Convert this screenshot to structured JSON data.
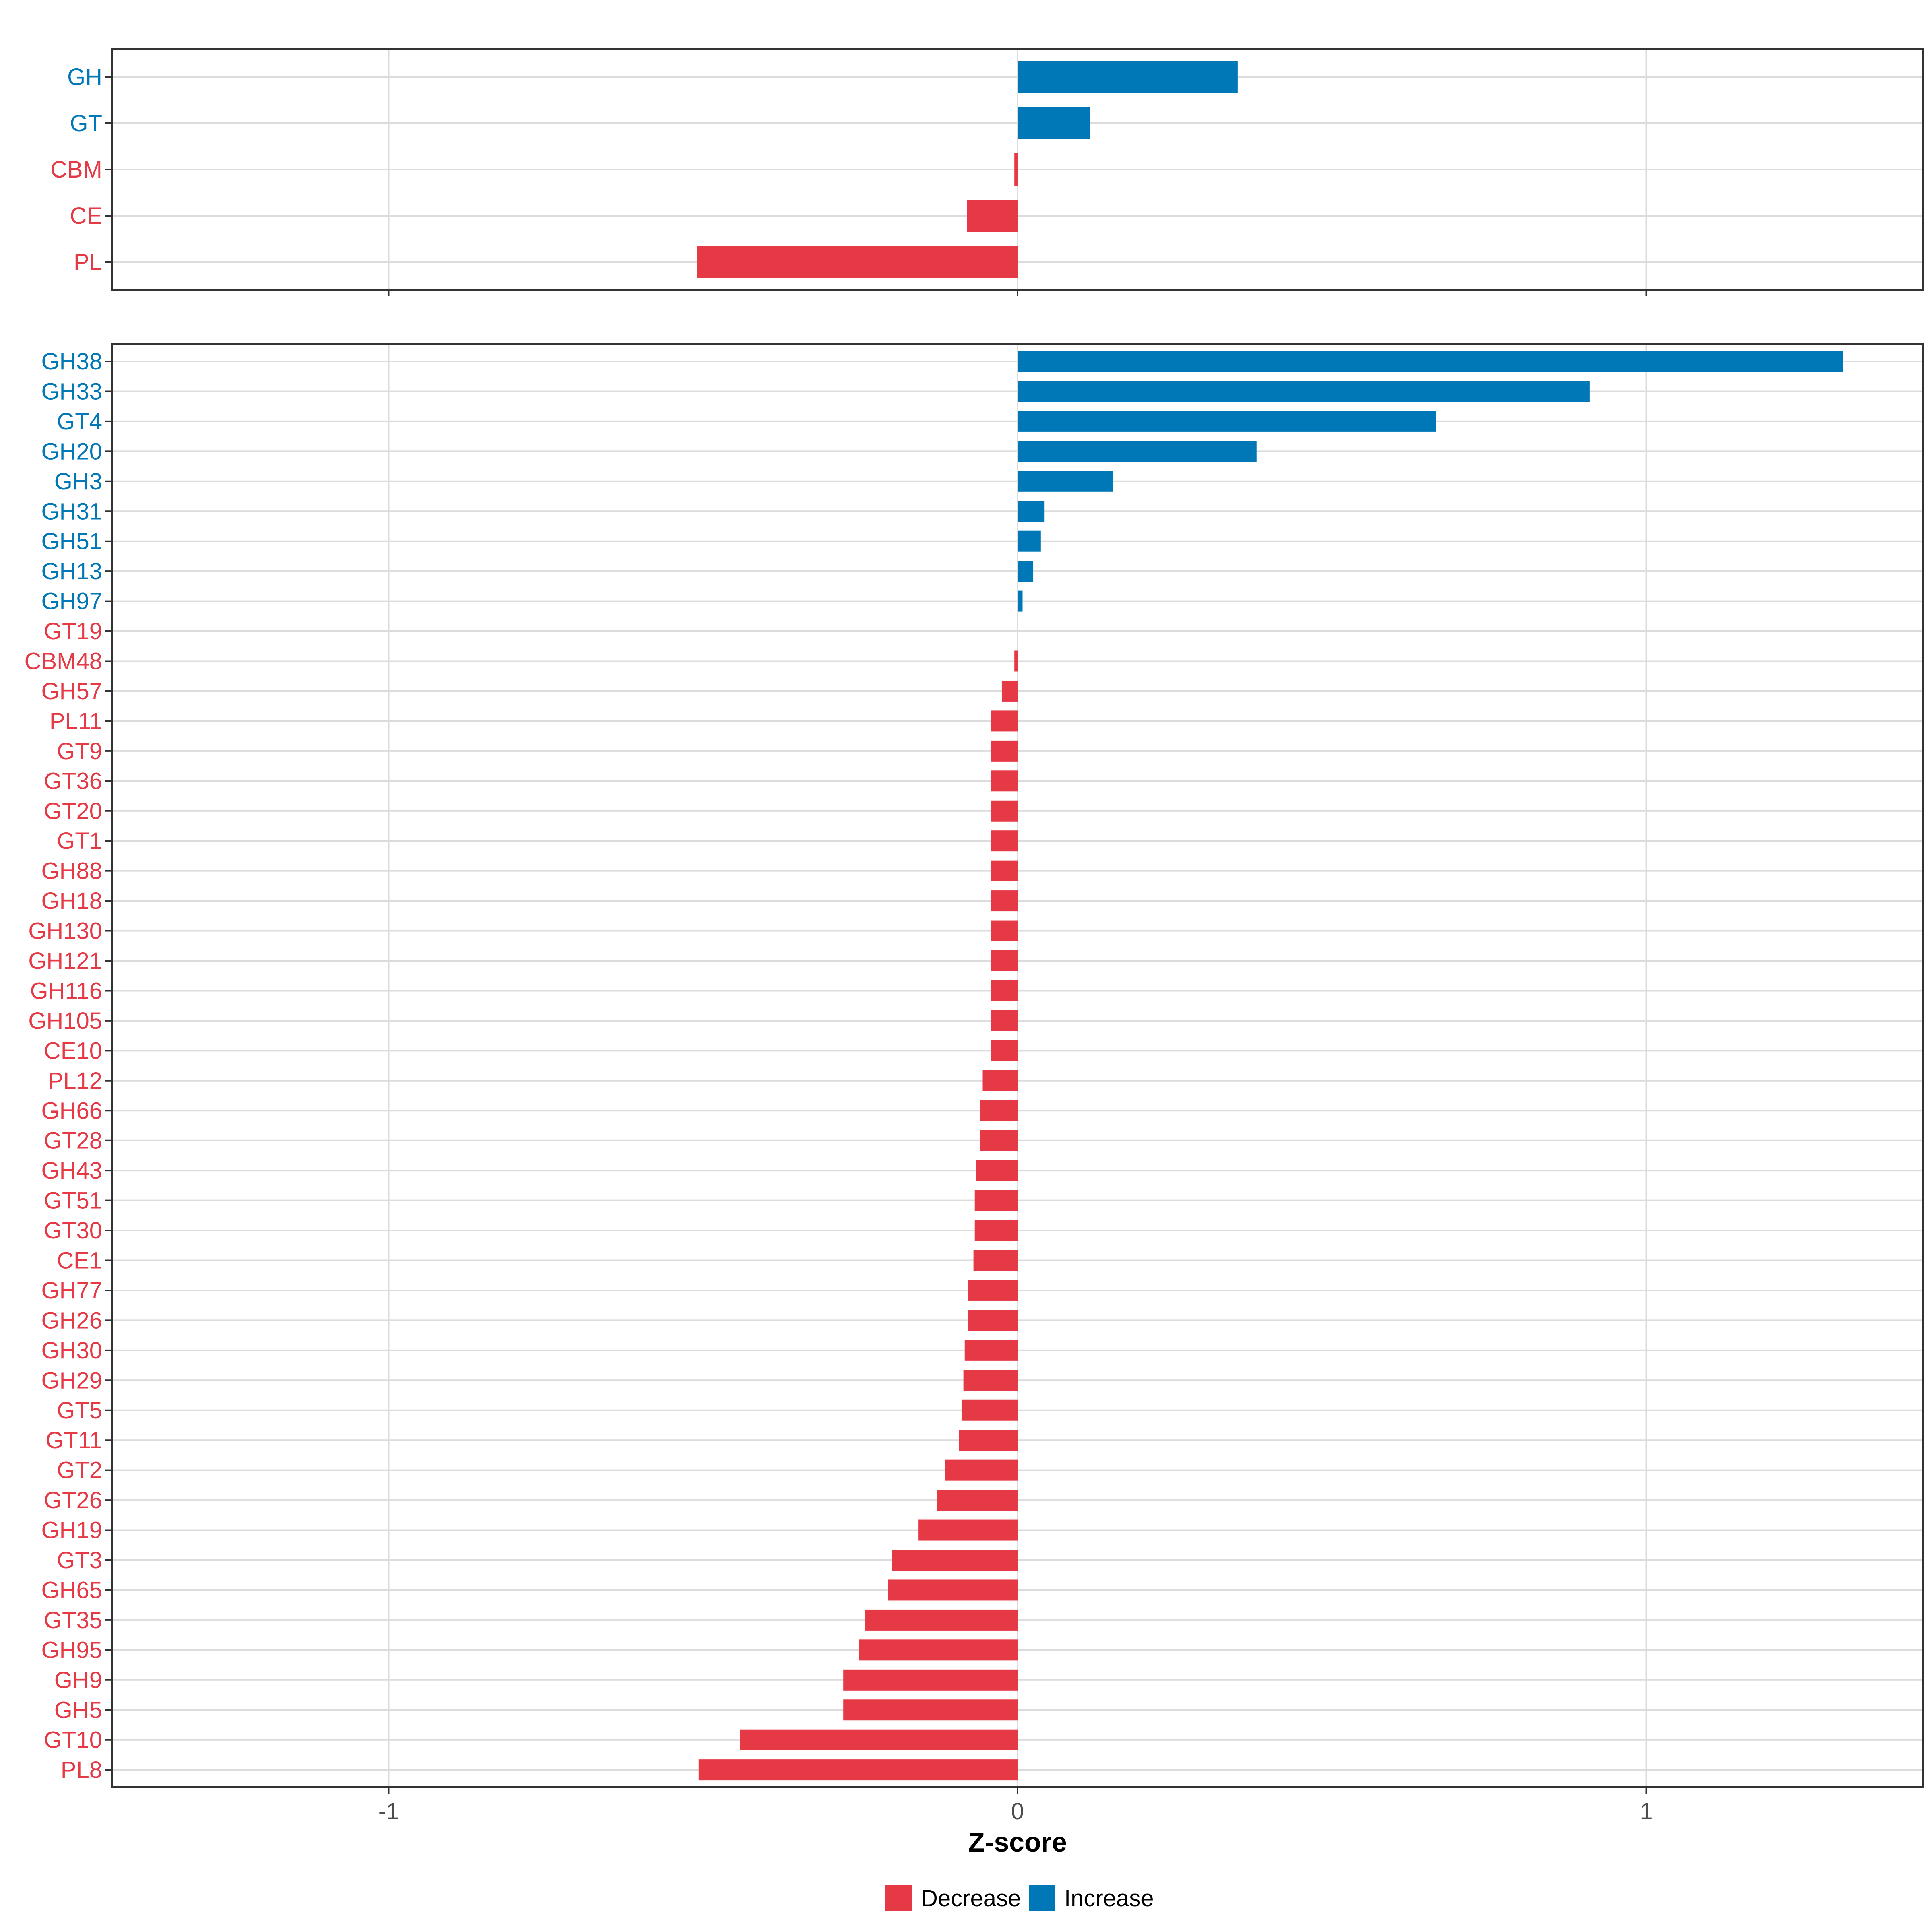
{
  "chart_data": {
    "type": "bar",
    "orientation": "horizontal",
    "xlabel": "Z-score",
    "xlim": [
      -1.44,
      1.44
    ],
    "x_ticks": [
      {
        "value": -1,
        "label": "-1"
      },
      {
        "value": 0,
        "label": "0"
      },
      {
        "value": 1,
        "label": "1"
      }
    ],
    "colors": {
      "Decrease": "#E63946",
      "Increase": "#0077B6"
    },
    "legend": {
      "position": "bottom",
      "entries": [
        "Decrease",
        "Increase"
      ]
    },
    "panels": [
      {
        "name": "class",
        "categories": [
          "GH",
          "GT",
          "CBM",
          "CE",
          "PL"
        ],
        "values": [
          0.35,
          0.115,
          -0.005,
          -0.08,
          -0.51
        ],
        "groups": [
          "Increase",
          "Increase",
          "Decrease",
          "Decrease",
          "Decrease"
        ]
      },
      {
        "name": "family",
        "categories": [
          "GH38",
          "GH33",
          "GT4",
          "GH20",
          "GH3",
          "GH31",
          "GH51",
          "GH13",
          "GH97",
          "GT19",
          "CBM48",
          "GH57",
          "PL11",
          "GT9",
          "GT36",
          "GT20",
          "GT1",
          "GH88",
          "GH18",
          "GH130",
          "GH121",
          "GH116",
          "GH105",
          "CE10",
          "PL12",
          "GH66",
          "GT28",
          "GH43",
          "GT51",
          "GT30",
          "CE1",
          "GH77",
          "GH26",
          "GH30",
          "GH29",
          "GT5",
          "GT11",
          "GT2",
          "GT26",
          "GH19",
          "GT3",
          "GH65",
          "GT35",
          "GH95",
          "GH9",
          "GH5",
          "GT10",
          "PL8"
        ],
        "values": [
          1.313,
          0.91,
          0.665,
          0.38,
          0.152,
          0.043,
          0.037,
          0.025,
          0.008,
          0.0,
          -0.005,
          -0.025,
          -0.042,
          -0.042,
          -0.042,
          -0.042,
          -0.042,
          -0.042,
          -0.042,
          -0.042,
          -0.042,
          -0.042,
          -0.042,
          -0.042,
          -0.056,
          -0.059,
          -0.06,
          -0.066,
          -0.068,
          -0.068,
          -0.07,
          -0.079,
          -0.079,
          -0.084,
          -0.086,
          -0.089,
          -0.093,
          -0.115,
          -0.128,
          -0.158,
          -0.2,
          -0.206,
          -0.242,
          -0.252,
          -0.277,
          -0.277,
          -0.441,
          -0.507
        ],
        "groups": [
          "Increase",
          "Increase",
          "Increase",
          "Increase",
          "Increase",
          "Increase",
          "Increase",
          "Increase",
          "Increase",
          "Decrease",
          "Decrease",
          "Decrease",
          "Decrease",
          "Decrease",
          "Decrease",
          "Decrease",
          "Decrease",
          "Decrease",
          "Decrease",
          "Decrease",
          "Decrease",
          "Decrease",
          "Decrease",
          "Decrease",
          "Decrease",
          "Decrease",
          "Decrease",
          "Decrease",
          "Decrease",
          "Decrease",
          "Decrease",
          "Decrease",
          "Decrease",
          "Decrease",
          "Decrease",
          "Decrease",
          "Decrease",
          "Decrease",
          "Decrease",
          "Decrease",
          "Decrease",
          "Decrease",
          "Decrease",
          "Decrease",
          "Decrease",
          "Decrease",
          "Decrease",
          "Decrease"
        ]
      }
    ]
  }
}
